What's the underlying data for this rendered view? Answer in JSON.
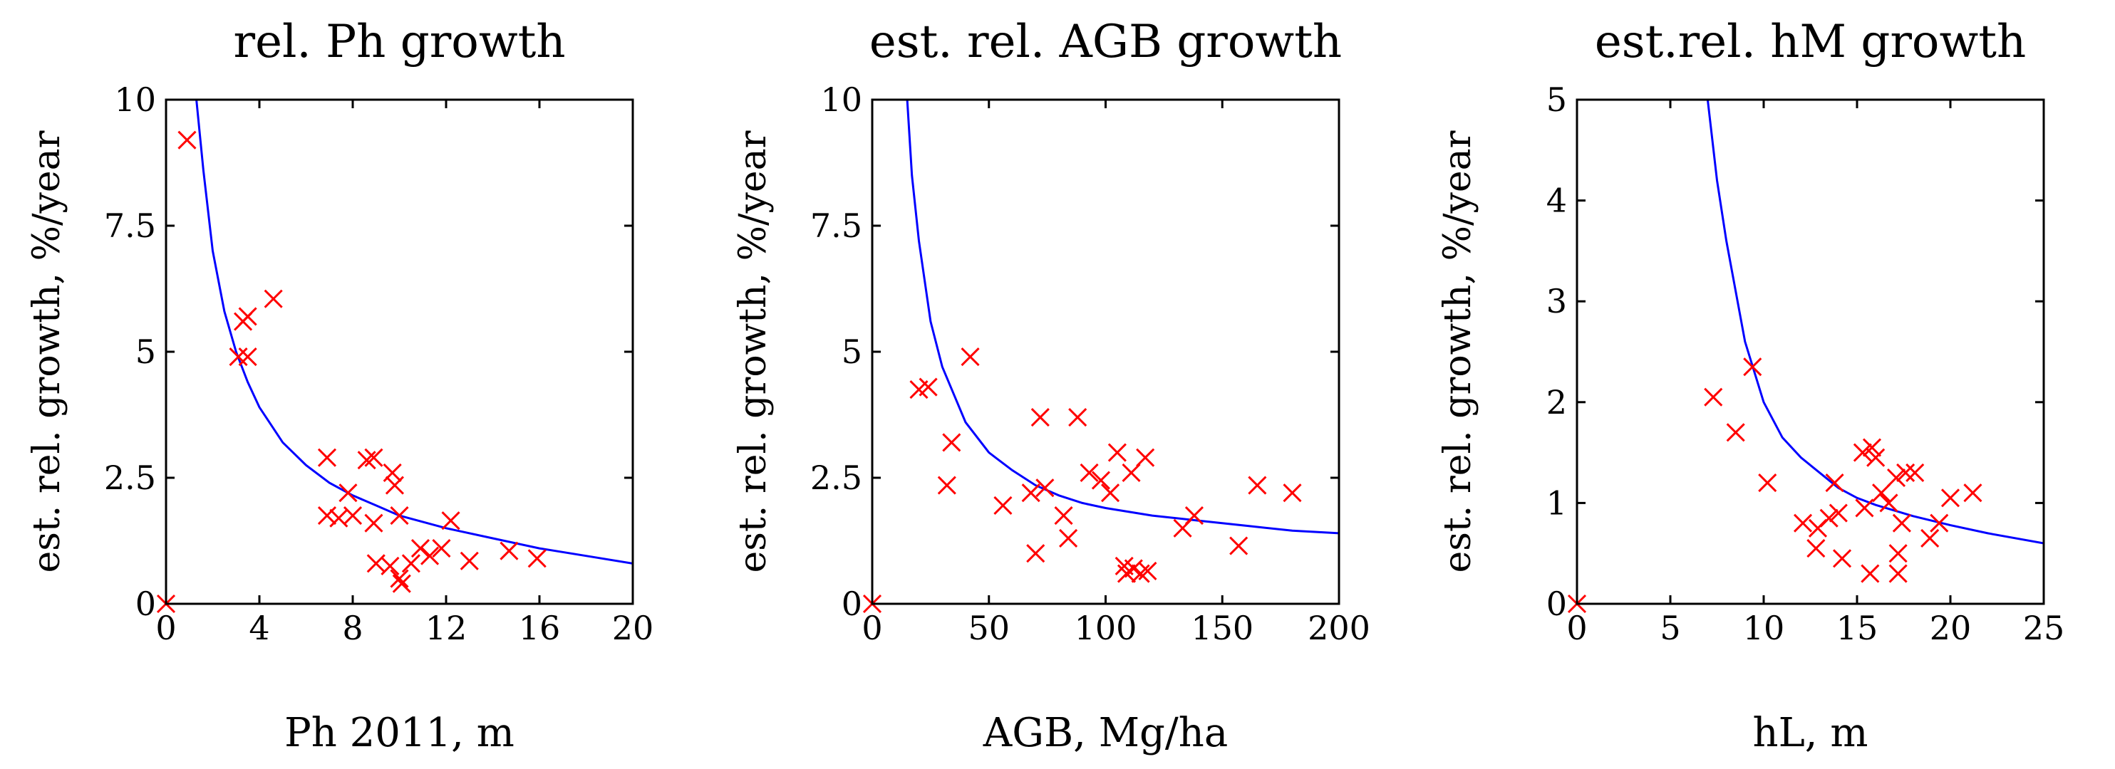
{
  "chart_data": [
    {
      "type": "scatter",
      "title": "rel. Ph growth",
      "xlabel": "Ph 2011, m",
      "ylabel": "est. rel. growth, %/year",
      "xlim": [
        0,
        20
      ],
      "ylim": [
        0,
        10
      ],
      "xticks": [
        "0",
        "4",
        "8",
        "12",
        "16",
        "20"
      ],
      "yticks": [
        "0",
        "2.5",
        "5",
        "7.5",
        "10"
      ],
      "xtick_values": [
        0,
        4,
        8,
        12,
        16,
        20
      ],
      "ytick_values": [
        0,
        2.5,
        5,
        7.5,
        10
      ],
      "points": [
        [
          0,
          0
        ],
        [
          0.9,
          9.2
        ],
        [
          3.1,
          4.9
        ],
        [
          3.5,
          4.9
        ],
        [
          3.3,
          5.6
        ],
        [
          3.5,
          5.7
        ],
        [
          4.6,
          6.05
        ],
        [
          6.9,
          2.9
        ],
        [
          6.9,
          1.75
        ],
        [
          7.4,
          1.7
        ],
        [
          7.8,
          2.2
        ],
        [
          8.0,
          1.75
        ],
        [
          8.6,
          2.85
        ],
        [
          8.9,
          2.9
        ],
        [
          8.9,
          1.6
        ],
        [
          9.0,
          0.8
        ],
        [
          9.7,
          2.6
        ],
        [
          9.8,
          2.35
        ],
        [
          9.6,
          0.75
        ],
        [
          10.0,
          1.75
        ],
        [
          10.0,
          0.5
        ],
        [
          10.1,
          0.4
        ],
        [
          10.5,
          0.8
        ],
        [
          10.9,
          1.1
        ],
        [
          11.3,
          0.95
        ],
        [
          11.8,
          1.1
        ],
        [
          12.2,
          1.65
        ],
        [
          13.0,
          0.85
        ],
        [
          14.7,
          1.05
        ],
        [
          15.9,
          0.9
        ]
      ],
      "series": [
        {
          "name": "data",
          "kind": "markers",
          "color": "#ff0000"
        },
        {
          "name": "fit",
          "kind": "line",
          "color": "#0000ff",
          "x": [
            1.3,
            1.6,
            2,
            2.5,
            3,
            3.5,
            4,
            5,
            6,
            7,
            8,
            9,
            10,
            12,
            14,
            16,
            18,
            20
          ],
          "y": [
            10,
            8.6,
            7.0,
            5.8,
            5.0,
            4.4,
            3.9,
            3.2,
            2.75,
            2.4,
            2.15,
            1.95,
            1.75,
            1.5,
            1.3,
            1.1,
            0.95,
            0.8
          ]
        }
      ]
    },
    {
      "type": "scatter",
      "title": "est. rel. AGB growth",
      "xlabel": "AGB, Mg/ha",
      "ylabel": "est. rel. growth, %/year",
      "xlim": [
        0,
        200
      ],
      "ylim": [
        0,
        10
      ],
      "xticks": [
        "0",
        "50",
        "100",
        "150",
        "200"
      ],
      "yticks": [
        "0",
        "2.5",
        "5",
        "7.5",
        "10"
      ],
      "xtick_values": [
        0,
        50,
        100,
        150,
        200
      ],
      "ytick_values": [
        0,
        2.5,
        5,
        7.5,
        10
      ],
      "points": [
        [
          0,
          0
        ],
        [
          20,
          4.25
        ],
        [
          24,
          4.3
        ],
        [
          32,
          2.35
        ],
        [
          34,
          3.2
        ],
        [
          42,
          4.9
        ],
        [
          56,
          1.95
        ],
        [
          68,
          2.2
        ],
        [
          70,
          1.0
        ],
        [
          72,
          3.7
        ],
        [
          74,
          2.3
        ],
        [
          82,
          1.75
        ],
        [
          84,
          1.3
        ],
        [
          88,
          3.7
        ],
        [
          93,
          2.6
        ],
        [
          98,
          2.45
        ],
        [
          102,
          2.2
        ],
        [
          105,
          3.0
        ],
        [
          108,
          0.75
        ],
        [
          109,
          0.6
        ],
        [
          111,
          2.6
        ],
        [
          112,
          0.7
        ],
        [
          115,
          0.6
        ],
        [
          117,
          2.9
        ],
        [
          118,
          0.65
        ],
        [
          133,
          1.5
        ],
        [
          138,
          1.75
        ],
        [
          157,
          1.15
        ],
        [
          165,
          2.35
        ],
        [
          180,
          2.2
        ]
      ],
      "series": [
        {
          "name": "data",
          "kind": "markers",
          "color": "#ff0000"
        },
        {
          "name": "fit",
          "kind": "line",
          "color": "#0000ff",
          "x": [
            15,
            17,
            20,
            25,
            30,
            40,
            50,
            60,
            70,
            80,
            90,
            100,
            120,
            140,
            160,
            180,
            200
          ],
          "y": [
            10,
            8.5,
            7.2,
            5.6,
            4.7,
            3.6,
            3.0,
            2.65,
            2.35,
            2.15,
            2.0,
            1.9,
            1.75,
            1.65,
            1.55,
            1.45,
            1.4
          ]
        }
      ]
    },
    {
      "type": "scatter",
      "title": "est.rel. hM growth",
      "xlabel": "hL, m",
      "ylabel": "est. rel. growth, %/year",
      "xlim": [
        0,
        25
      ],
      "ylim": [
        0,
        5
      ],
      "xticks": [
        "0",
        "5",
        "10",
        "15",
        "20",
        "25"
      ],
      "yticks": [
        "0",
        "1",
        "2",
        "3",
        "4",
        "5"
      ],
      "xtick_values": [
        0,
        5,
        10,
        15,
        20,
        25
      ],
      "ytick_values": [
        0,
        1,
        2,
        3,
        4,
        5
      ],
      "points": [
        [
          0,
          0
        ],
        [
          7.3,
          2.05
        ],
        [
          8.5,
          1.7
        ],
        [
          9.4,
          2.35
        ],
        [
          10.2,
          1.2
        ],
        [
          12.1,
          0.8
        ],
        [
          12.8,
          0.55
        ],
        [
          12.9,
          0.75
        ],
        [
          13.5,
          0.85
        ],
        [
          13.8,
          1.2
        ],
        [
          14.0,
          0.9
        ],
        [
          14.2,
          0.45
        ],
        [
          15.3,
          1.5
        ],
        [
          15.4,
          0.95
        ],
        [
          15.7,
          0.3
        ],
        [
          15.8,
          1.55
        ],
        [
          16.0,
          1.45
        ],
        [
          16.3,
          1.1
        ],
        [
          16.7,
          1.0
        ],
        [
          17.1,
          1.25
        ],
        [
          17.2,
          0.5
        ],
        [
          17.2,
          0.3
        ],
        [
          17.4,
          0.8
        ],
        [
          17.6,
          1.3
        ],
        [
          18.1,
          1.3
        ],
        [
          18.9,
          0.65
        ],
        [
          19.4,
          0.8
        ],
        [
          20.0,
          1.05
        ],
        [
          21.2,
          1.1
        ]
      ],
      "series": [
        {
          "name": "data",
          "kind": "markers",
          "color": "#ff0000"
        },
        {
          "name": "fit",
          "kind": "line",
          "color": "#0000ff",
          "x": [
            7,
            7.5,
            8,
            9,
            10,
            11,
            12,
            13,
            14,
            15,
            16,
            18,
            20,
            22,
            25
          ],
          "y": [
            5,
            4.2,
            3.6,
            2.6,
            2.0,
            1.65,
            1.45,
            1.3,
            1.15,
            1.05,
            0.98,
            0.87,
            0.78,
            0.7,
            0.6
          ]
        }
      ]
    }
  ]
}
